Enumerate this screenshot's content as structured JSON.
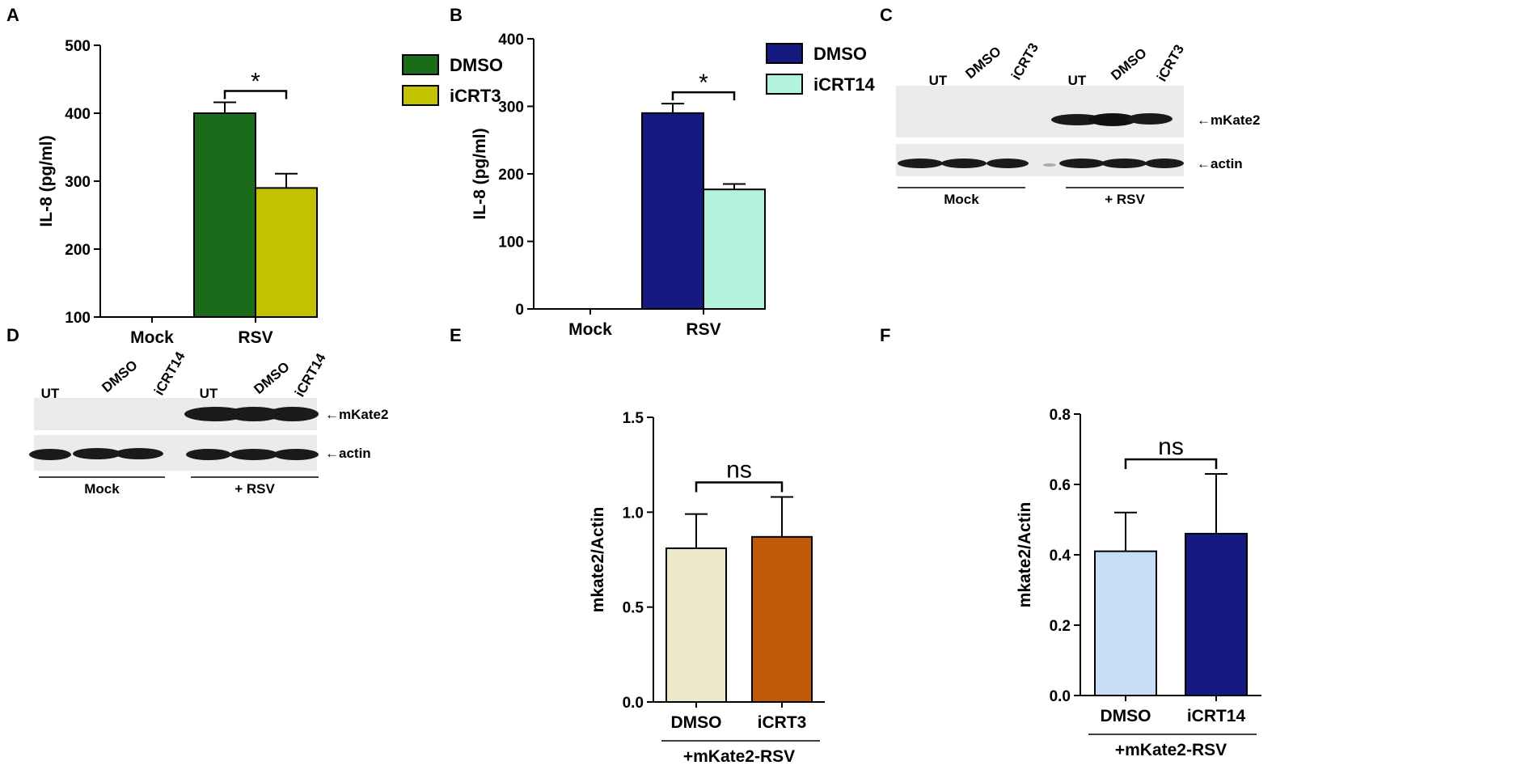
{
  "panels": {
    "a": "A",
    "b": "B",
    "c": "C",
    "d": "D",
    "e": "E",
    "f": "F"
  },
  "chart_data": [
    {
      "id": "A",
      "type": "bar",
      "ylabel": "IL-8 (pg/ml)",
      "ylim": [
        100,
        500
      ],
      "yticks": [
        100,
        200,
        300,
        400,
        500
      ],
      "categories": [
        "Mock",
        "RSV"
      ],
      "series": [
        {
          "name": "DMSO",
          "color": "#1a6b1a",
          "values": [
            null,
            400
          ],
          "errors": [
            null,
            16
          ]
        },
        {
          "name": "iCRT3",
          "color": "#c2c200",
          "values": [
            null,
            290
          ],
          "errors": [
            null,
            21
          ]
        }
      ],
      "significance": "*",
      "legend_position": "top-right"
    },
    {
      "id": "B",
      "type": "bar",
      "ylabel": "IL-8 (pg/ml)",
      "ylim": [
        0,
        400
      ],
      "yticks": [
        0,
        100,
        200,
        300,
        400
      ],
      "categories": [
        "Mock",
        "RSV"
      ],
      "series": [
        {
          "name": "DMSO",
          "color": "#141a80",
          "values": [
            null,
            290
          ],
          "errors": [
            null,
            14
          ]
        },
        {
          "name": "iCRT14",
          "color": "#b3f2dc",
          "values": [
            null,
            177
          ],
          "errors": [
            null,
            8
          ]
        }
      ],
      "significance": "*",
      "legend_position": "top-right"
    },
    {
      "id": "E",
      "type": "bar",
      "ylabel": "mkate2/Actin",
      "ylim": [
        0,
        1.5
      ],
      "yticks": [
        "0.0",
        "0.5",
        "1.0",
        "1.5"
      ],
      "categories": [
        "DMSO",
        "iCRT3"
      ],
      "values": [
        0.81,
        0.87
      ],
      "errors": [
        0.18,
        0.21
      ],
      "colors": [
        "#ede8ca",
        "#c05a08"
      ],
      "group_label": "+mKate2-RSV",
      "significance": "ns"
    },
    {
      "id": "F",
      "type": "bar",
      "ylabel": "mkate2/Actin",
      "ylim": [
        0,
        0.8
      ],
      "yticks": [
        "0.0",
        "0.2",
        "0.4",
        "0.6",
        "0.8"
      ],
      "categories": [
        "DMSO",
        "iCRT14"
      ],
      "values": [
        0.41,
        0.46
      ],
      "errors": [
        0.11,
        0.17
      ],
      "colors": [
        "#c8dcf7",
        "#141a80"
      ],
      "group_label": "+mKate2-RSV",
      "significance": "ns"
    }
  ],
  "blots": {
    "c": {
      "lanes": [
        "UT",
        "DMSO",
        "iCRT3",
        "UT",
        "DMSO",
        "iCRT3"
      ],
      "bands": [
        "mKate2",
        "actin"
      ],
      "groups": [
        "Mock",
        "+ RSV"
      ]
    },
    "d": {
      "lanes": [
        "UT",
        "DMSO",
        "iCRT14",
        "UT",
        "DMSO",
        "iCRT14"
      ],
      "bands": [
        "mKate2",
        "actin"
      ],
      "groups": [
        "Mock",
        "+ RSV"
      ]
    }
  }
}
